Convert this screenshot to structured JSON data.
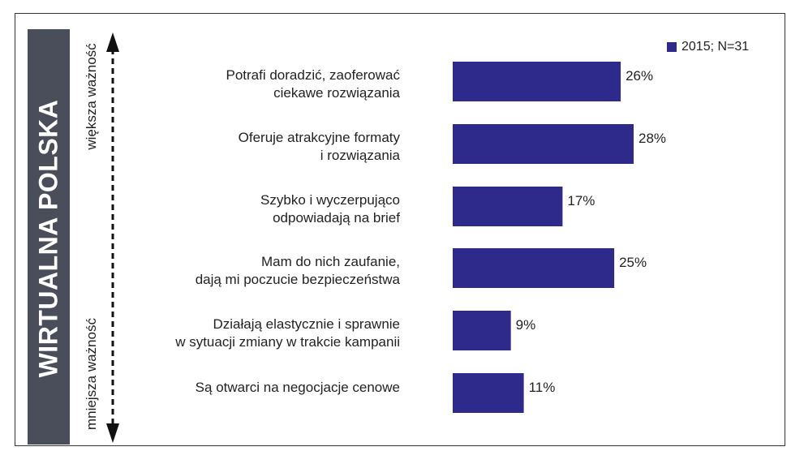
{
  "side_panel": {
    "title": "WIRTUALNA POLSKA",
    "bg_color": "#4a4d5a"
  },
  "axis": {
    "top_label": "większa ważność",
    "bottom_label": "mniejsza ważność"
  },
  "legend": {
    "label": "2015; N=31",
    "color": "#2e2a8c"
  },
  "chart_data": {
    "type": "bar",
    "orientation": "horizontal",
    "bar_color": "#2e2a8c",
    "xlim": [
      0,
      28
    ],
    "categories": [
      [
        "Potrafi doradzić, zaoferować",
        "ciekawe rozwiązania"
      ],
      [
        "Oferuje atrakcyjne formaty",
        "i rozwiązania"
      ],
      [
        "Szybko i wyczerpująco",
        "odpowiadają na brief"
      ],
      [
        "Mam do nich zaufanie,",
        "dają mi poczucie bezpieczeństwa"
      ],
      [
        "Działają elastycznie i sprawnie",
        "w sytuacji zmiany w trakcie kampanii"
      ],
      [
        "Są otwarci na negocjacje cenowe"
      ]
    ],
    "series": [
      {
        "name": "2015; N=31",
        "values": [
          26,
          28,
          17,
          25,
          9,
          11
        ],
        "labels": [
          "26%",
          "28%",
          "17%",
          "25%",
          "9%",
          "11%"
        ]
      }
    ]
  }
}
